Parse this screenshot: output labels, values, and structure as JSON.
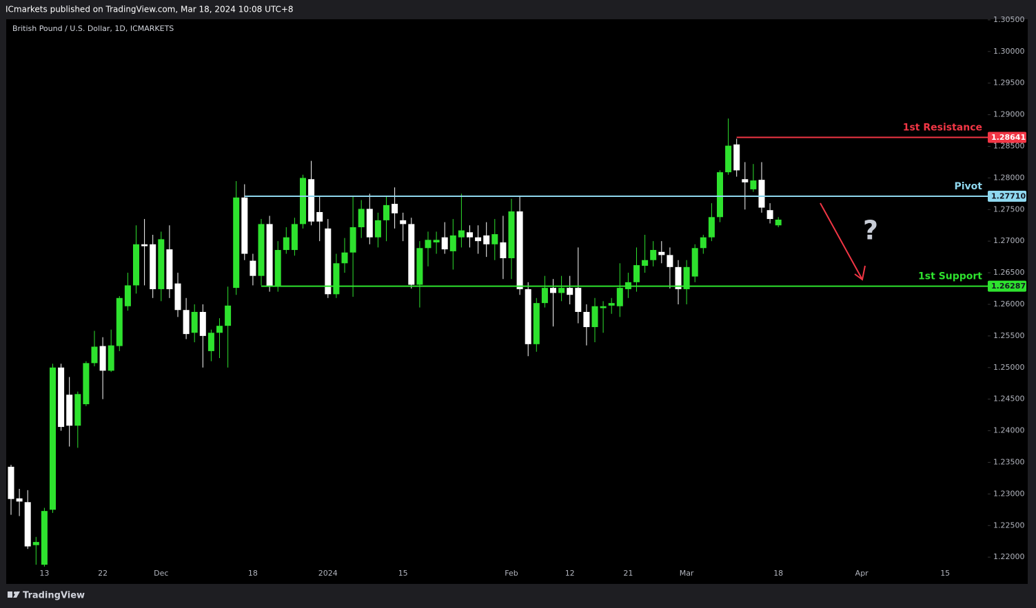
{
  "publisher_line": "ICmarkets published on TradingView.com, Mar 18, 2024 10:08 UTC+8",
  "footer": "TradingView",
  "chart_data": {
    "type": "candlestick",
    "title": "British Pound / U.S. Dollar, 1D, ICMARKETS",
    "up_color": "#2ee22e",
    "down_color": "#ffffff",
    "categories": [
      null,
      null,
      null,
      null,
      "13",
      null,
      null,
      null,
      null,
      null,
      null,
      "22",
      null,
      null,
      null,
      null,
      null,
      null,
      "Dec",
      null,
      null,
      null,
      null,
      null,
      null,
      null,
      null,
      null,
      null,
      "18",
      null,
      null,
      null,
      null,
      null,
      null,
      null,
      null,
      "2024",
      null,
      null,
      null,
      null,
      null,
      null,
      null,
      null,
      "15",
      null,
      null,
      null,
      null,
      null,
      null,
      null,
      null,
      null,
      null,
      null,
      null,
      "Feb",
      null,
      null,
      null,
      null,
      null,
      null,
      "12",
      null,
      null,
      null,
      null,
      null,
      null,
      "21",
      null,
      null,
      null,
      null,
      null,
      null,
      "Mar",
      null,
      null,
      null,
      null,
      null,
      null,
      null,
      null,
      null,
      null,
      "18",
      null,
      null,
      null,
      null,
      null,
      null,
      null,
      null,
      null,
      "Apr",
      null,
      null,
      null,
      null,
      null,
      null,
      null,
      null,
      null,
      "15",
      null,
      null,
      null,
      null
    ],
    "open": [
      1.2343,
      1.2293,
      1.2287,
      1.2219,
      1.2188,
      1.2275,
      1.25,
      1.2457,
      1.2408,
      1.2442,
      1.2507,
      1.2534,
      1.2495,
      1.2534,
      1.2597,
      1.263,
      1.2695,
      1.2695,
      1.2624,
      1.2687,
      1.2633,
      1.2591,
      1.2555,
      1.2588,
      1.2526,
      1.2555,
      1.2566,
      1.2626,
      1.2769,
      1.2669,
      1.2645,
      1.2727,
      1.2629,
      1.2686,
      1.2686,
      1.2727,
      1.2798,
      1.2746,
      1.272,
      1.2616,
      1.2665,
      1.2682,
      1.2722,
      1.2751,
      1.2706,
      1.2733,
      1.2759,
      1.2733,
      1.2727,
      1.2631,
      1.2689,
      1.2698,
      1.2706,
      1.2684,
      1.2706,
      1.2714,
      1.2706,
      1.2709,
      1.2695,
      1.2698,
      1.2673,
      1.2747,
      1.2624,
      1.2537,
      1.2602,
      1.2626,
      1.2618,
      1.2626,
      1.2626,
      1.2588,
      1.2564,
      1.2594,
      1.2598,
      1.2597,
      1.2624,
      1.2635,
      1.2661,
      1.267,
      1.2683,
      1.2678,
      1.2659,
      1.2624,
      1.2644,
      1.2689,
      1.2706,
      1.2738,
      1.2809,
      1.2853,
      1.2798,
      1.2782,
      1.2797,
      1.2749,
      1.2725,
      null,
      null,
      null,
      null,
      null,
      null,
      null,
      null,
      null,
      null,
      null,
      null,
      null,
      null,
      null,
      null,
      null,
      null,
      null,
      null,
      null,
      null,
      null,
      null
    ],
    "high": [
      1.2346,
      1.2308,
      1.2306,
      1.2232,
      1.2278,
      1.2506,
      1.2506,
      1.2485,
      1.2462,
      1.251,
      1.2558,
      1.2548,
      1.256,
      1.2613,
      1.265,
      1.2725,
      1.2735,
      1.271,
      1.2715,
      1.2725,
      1.265,
      1.261,
      1.26,
      1.26,
      1.256,
      1.2578,
      1.2628,
      1.2795,
      1.279,
      1.268,
      1.2735,
      1.274,
      1.27,
      1.2722,
      1.2737,
      1.2805,
      1.2827,
      1.277,
      1.2735,
      1.268,
      1.2705,
      1.277,
      1.2765,
      1.2775,
      1.2745,
      1.277,
      1.2785,
      1.2745,
      1.2737,
      1.27,
      1.2715,
      1.2715,
      1.273,
      1.2735,
      1.2775,
      1.2725,
      1.2725,
      1.273,
      1.2735,
      1.274,
      1.2767,
      1.277,
      1.2635,
      1.261,
      1.2645,
      1.264,
      1.2645,
      1.2645,
      1.269,
      1.26,
      1.261,
      1.2605,
      1.261,
      1.2665,
      1.265,
      1.269,
      1.271,
      1.27,
      1.27,
      1.269,
      1.267,
      1.267,
      1.2695,
      1.271,
      1.276,
      1.2812,
      1.2894,
      1.2862,
      1.2825,
      1.2822,
      1.2825,
      1.276,
      1.2738,
      null,
      null,
      null,
      null,
      null,
      null,
      null,
      null,
      null,
      null,
      null,
      null,
      null,
      null,
      null,
      null,
      null,
      null,
      null,
      null,
      null,
      null,
      null,
      null
    ],
    "low": [
      1.2267,
      1.2265,
      1.2213,
      1.2188,
      1.2185,
      1.227,
      1.24,
      1.2375,
      1.2373,
      1.2439,
      1.2502,
      1.245,
      1.2493,
      1.2526,
      1.259,
      1.2617,
      1.263,
      1.261,
      1.2605,
      1.261,
      1.258,
      1.2545,
      1.254,
      1.25,
      1.251,
      1.2515,
      1.25,
      1.2615,
      1.267,
      1.263,
      1.263,
      1.262,
      1.262,
      1.268,
      1.2677,
      1.272,
      1.2725,
      1.27,
      1.261,
      1.261,
      1.265,
      1.2612,
      1.2705,
      1.2695,
      1.269,
      1.27,
      1.272,
      1.27,
      1.2625,
      1.2595,
      1.266,
      1.268,
      1.268,
      1.2655,
      1.269,
      1.269,
      1.268,
      1.2675,
      1.267,
      1.264,
      1.264,
      1.2615,
      1.2518,
      1.2525,
      1.2595,
      1.2565,
      1.2605,
      1.26,
      1.257,
      1.2535,
      1.254,
      1.2555,
      1.2585,
      1.258,
      1.261,
      1.262,
      1.265,
      1.266,
      1.2665,
      1.2625,
      1.26,
      1.26,
      1.2635,
      1.268,
      1.27,
      1.273,
      1.2805,
      1.2802,
      1.275,
      1.2778,
      1.2745,
      1.2728,
      1.2722,
      null,
      null,
      null,
      null,
      null,
      null,
      null,
      null,
      null,
      null,
      null,
      null,
      null,
      null,
      null,
      null,
      null,
      null,
      null,
      null,
      null,
      null,
      null,
      null
    ],
    "close": [
      1.2292,
      1.2288,
      1.2217,
      1.2224,
      1.2273,
      1.25,
      1.2406,
      1.2408,
      1.2458,
      1.2507,
      1.2533,
      1.2495,
      1.2535,
      1.261,
      1.263,
      1.2695,
      1.2692,
      1.2624,
      1.2703,
      1.2624,
      1.2591,
      1.2553,
      1.2588,
      1.255,
      1.2555,
      1.2566,
      1.2598,
      1.2769,
      1.268,
      1.2645,
      1.2727,
      1.2629,
      1.2686,
      1.2706,
      1.2727,
      1.28,
      1.2731,
      1.2731,
      1.2616,
      1.2665,
      1.2682,
      1.2722,
      1.2751,
      1.2706,
      1.2733,
      1.2757,
      1.2744,
      1.2727,
      1.2631,
      1.2689,
      1.2702,
      1.2702,
      1.2687,
      1.2709,
      1.2717,
      1.2706,
      1.27,
      1.2695,
      1.2711,
      1.2673,
      1.2747,
      1.2624,
      1.2537,
      1.2602,
      1.2626,
      1.2618,
      1.2626,
      1.2615,
      1.2588,
      1.2564,
      1.2597,
      1.2597,
      1.2602,
      1.2626,
      1.2635,
      1.2662,
      1.267,
      1.2686,
      1.2678,
      1.2659,
      1.2624,
      1.2659,
      1.2689,
      1.2706,
      1.2738,
      1.2809,
      1.2851,
      1.2812,
      1.2793,
      1.2796,
      1.2753,
      1.2735,
      1.2734,
      null,
      null,
      null,
      null,
      null,
      null,
      null,
      null,
      null,
      null,
      null,
      null,
      null,
      null,
      null,
      null,
      null,
      null,
      null,
      null,
      null,
      null,
      null,
      null
    ],
    "ylim": [
      1.2186,
      1.3051
    ],
    "yticks": [
      {
        "value": 1.22,
        "label": "1.22000"
      },
      {
        "value": 1.225,
        "label": "1.22500"
      },
      {
        "value": 1.23,
        "label": "1.23000"
      },
      {
        "value": 1.235,
        "label": "1.23500"
      },
      {
        "value": 1.24,
        "label": "1.24000"
      },
      {
        "value": 1.245,
        "label": "1.24500"
      },
      {
        "value": 1.25,
        "label": "1.25000"
      },
      {
        "value": 1.255,
        "label": "1.25500"
      },
      {
        "value": 1.26,
        "label": "1.26000"
      },
      {
        "value": 1.265,
        "label": "1.26500"
      },
      {
        "value": 1.27,
        "label": "1.27000"
      },
      {
        "value": 1.275,
        "label": "1.27500"
      },
      {
        "value": 1.28,
        "label": "1.28000"
      },
      {
        "value": 1.285,
        "label": "1.28500"
      },
      {
        "value": 1.29,
        "label": "1.29000"
      },
      {
        "value": 1.295,
        "label": "1.29500"
      },
      {
        "value": 1.3,
        "label": "1.30000"
      },
      {
        "value": 1.305,
        "label": "1.30500"
      }
    ],
    "levels": [
      {
        "name": "1st Resistance",
        "price": 1.28641,
        "color": "#f23645"
      },
      {
        "name": "Pivot",
        "price": {
          "value": 1.2771,
          "label": "1.27710"
        },
        "color": "#8fd8ef"
      },
      {
        "name": "1st Support",
        "price": 1.26287,
        "color": "#2ee22e"
      }
    ],
    "annotation": "?"
  }
}
